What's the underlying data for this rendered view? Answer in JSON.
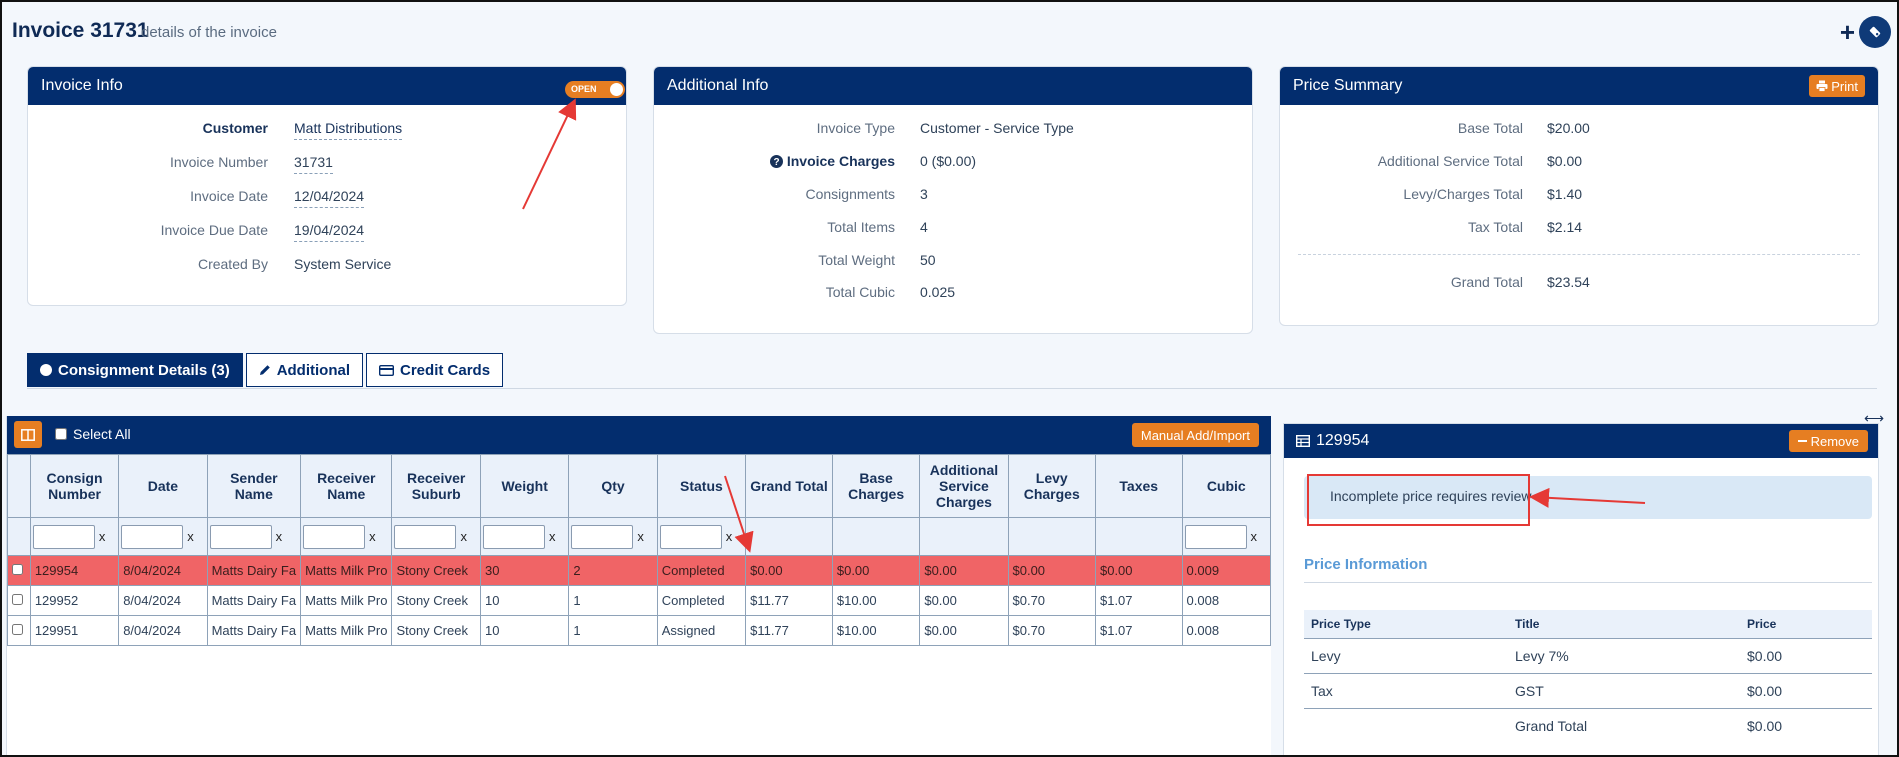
{
  "page": {
    "title": "Invoice 31731",
    "subtitle": "details of the invoice"
  },
  "invoice_info": {
    "header": "Invoice Info",
    "toggle_label": "OPEN",
    "rows": [
      {
        "label": "Customer",
        "value": "Matt Distributions"
      },
      {
        "label": "Invoice Number",
        "value": "31731"
      },
      {
        "label": "Invoice Date",
        "value": "12/04/2024"
      },
      {
        "label": "Invoice Due Date",
        "value": "19/04/2024"
      },
      {
        "label": "Created By",
        "value": "System Service"
      }
    ]
  },
  "additional_info": {
    "header": "Additional Info",
    "rows": [
      {
        "label": "Invoice Type",
        "value": "Customer - Service Type"
      },
      {
        "label": "Invoice Charges",
        "value": "0 ($0.00)"
      },
      {
        "label": "Consignments",
        "value": "3"
      },
      {
        "label": "Total Items",
        "value": "4"
      },
      {
        "label": "Total Weight",
        "value": "50"
      },
      {
        "label": "Total Cubic",
        "value": "0.025"
      }
    ]
  },
  "price_summary": {
    "header": "Price Summary",
    "print_label": "Print",
    "rows": [
      {
        "label": "Base Total",
        "value": "$20.00"
      },
      {
        "label": "Additional Service Total",
        "value": "$0.00"
      },
      {
        "label": "Levy/Charges Total",
        "value": "$1.40"
      },
      {
        "label": "Tax Total",
        "value": "$2.14"
      }
    ],
    "grand": {
      "label": "Grand Total",
      "value": "$23.54"
    }
  },
  "tabs": [
    {
      "label": "Consignment Details (3)",
      "icon": "circle-icon"
    },
    {
      "label": "Additional",
      "icon": "pencil-icon"
    },
    {
      "label": "Credit Cards",
      "icon": "credit-card-icon"
    }
  ],
  "grid": {
    "select_all": "Select All",
    "manual_add": "Manual Add/Import",
    "filter_clear": "x",
    "columns": [
      "Consign Number",
      "Date",
      "Sender Name",
      "Receiver Name",
      "Receiver Suburb",
      "Weight",
      "Qty",
      "Status",
      "Grand Total",
      "Base Charges",
      "Additional Service Charges",
      "Levy Charges",
      "Taxes",
      "Cubic"
    ],
    "rows": [
      [
        "129954",
        "8/04/2024",
        "Matts Dairy Fa",
        "Matts Milk Pro",
        "Stony Creek",
        "30",
        "2",
        "Completed",
        "$0.00",
        "$0.00",
        "$0.00",
        "$0.00",
        "$0.00",
        "0.009"
      ],
      [
        "129952",
        "8/04/2024",
        "Matts Dairy Fa",
        "Matts Milk Pro",
        "Stony Creek",
        "10",
        "1",
        "Completed",
        "$11.77",
        "$10.00",
        "$0.00",
        "$0.70",
        "$1.07",
        "0.008"
      ],
      [
        "129951",
        "8/04/2024",
        "Matts Dairy Fa",
        "Matts Milk Pro",
        "Stony Creek",
        "10",
        "1",
        "Assigned",
        "$11.77",
        "$10.00",
        "$0.00",
        "$0.70",
        "$1.07",
        "0.008"
      ]
    ]
  },
  "side_panel": {
    "title": "129954",
    "remove_label": "Remove",
    "alert": "Incomplete price requires review",
    "price_title": "Price Information",
    "columns": [
      "Price Type",
      "Title",
      "Price"
    ],
    "rows": [
      [
        "Levy",
        "Levy 7%",
        "$0.00"
      ],
      [
        "Tax",
        "GST",
        "$0.00"
      ],
      [
        "",
        "Grand Total",
        "$0.00"
      ]
    ]
  },
  "colors": {
    "header_navy": "#032d6e",
    "accent_orange": "#e67e22",
    "error_row": "#f06466",
    "annotation_red": "#e53935"
  }
}
